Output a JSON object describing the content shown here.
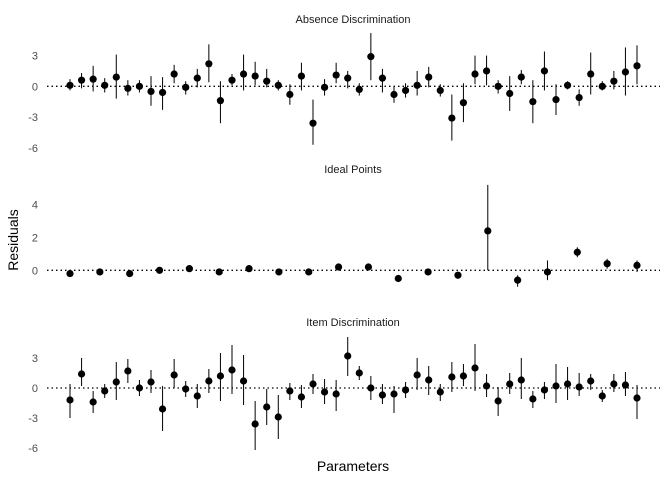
{
  "chart_data": {
    "type": "scatter",
    "subtype": "point-range faceted",
    "xlabel": "Parameters",
    "ylabel": "Residuals",
    "reference_line": {
      "y": 0,
      "style": "dotted"
    },
    "grid": false,
    "colors": {
      "point": "#000000",
      "errorbar": "#000000",
      "reference": "#000000"
    },
    "panels": [
      {
        "title": "Absence Discrimination",
        "ylim": [
          -7,
          5.5
        ],
        "yticks": [
          -6,
          -3,
          0,
          3
        ],
        "yticklabels": [
          "-6",
          "-3",
          "0",
          "3"
        ],
        "points": [
          {
            "x": 1,
            "y": 0.1,
            "lo": -0.4,
            "hi": 0.7
          },
          {
            "x": 2,
            "y": 0.6,
            "lo": -0.2,
            "hi": 1.3
          },
          {
            "x": 3,
            "y": 0.7,
            "lo": -0.5,
            "hi": 2.0
          },
          {
            "x": 4,
            "y": 0.1,
            "lo": -0.6,
            "hi": 0.8
          },
          {
            "x": 5,
            "y": 0.9,
            "lo": -1.2,
            "hi": 3.1
          },
          {
            "x": 6,
            "y": -0.2,
            "lo": -0.9,
            "hi": 0.6
          },
          {
            "x": 7,
            "y": 0.0,
            "lo": -0.6,
            "hi": 0.6
          },
          {
            "x": 8,
            "y": -0.5,
            "lo": -1.9,
            "hi": 1.0
          },
          {
            "x": 9,
            "y": -0.6,
            "lo": -2.3,
            "hi": 0.9
          },
          {
            "x": 10,
            "y": 1.2,
            "lo": 0.3,
            "hi": 2.1
          },
          {
            "x": 11,
            "y": -0.1,
            "lo": -0.8,
            "hi": 0.5
          },
          {
            "x": 12,
            "y": 0.8,
            "lo": -0.1,
            "hi": 1.7
          },
          {
            "x": 13,
            "y": 2.2,
            "lo": 0.4,
            "hi": 4.1
          },
          {
            "x": 14,
            "y": -1.4,
            "lo": -3.6,
            "hi": 0.5
          },
          {
            "x": 15,
            "y": 0.6,
            "lo": 0.1,
            "hi": 1.2
          },
          {
            "x": 16,
            "y": 1.2,
            "lo": -0.4,
            "hi": 3.1
          },
          {
            "x": 17,
            "y": 1.0,
            "lo": 0.1,
            "hi": 2.4
          },
          {
            "x": 18,
            "y": 0.5,
            "lo": -0.1,
            "hi": 1.7
          },
          {
            "x": 19,
            "y": 0.1,
            "lo": -0.4,
            "hi": 0.6
          },
          {
            "x": 20,
            "y": -0.8,
            "lo": -1.8,
            "hi": 0.2
          },
          {
            "x": 21,
            "y": 1.0,
            "lo": -0.4,
            "hi": 2.3
          },
          {
            "x": 22,
            "y": -3.6,
            "lo": -5.7,
            "hi": -1.3
          },
          {
            "x": 23,
            "y": -0.1,
            "lo": -0.9,
            "hi": 0.7
          },
          {
            "x": 24,
            "y": 1.1,
            "lo": 0.3,
            "hi": 2.3
          },
          {
            "x": 25,
            "y": 0.8,
            "lo": -0.2,
            "hi": 1.5
          },
          {
            "x": 26,
            "y": -0.3,
            "lo": -0.9,
            "hi": 0.3
          },
          {
            "x": 27,
            "y": 2.9,
            "lo": 0.6,
            "hi": 5.2
          },
          {
            "x": 28,
            "y": 0.8,
            "lo": -0.6,
            "hi": 1.7
          },
          {
            "x": 29,
            "y": -0.8,
            "lo": -1.6,
            "hi": 0.0
          },
          {
            "x": 30,
            "y": -0.4,
            "lo": -1.1,
            "hi": 0.3
          },
          {
            "x": 31,
            "y": 0.1,
            "lo": -0.9,
            "hi": 1.5
          },
          {
            "x": 32,
            "y": 0.9,
            "lo": -0.1,
            "hi": 1.9
          },
          {
            "x": 33,
            "y": -0.4,
            "lo": -1.0,
            "hi": 0.2
          },
          {
            "x": 34,
            "y": -3.1,
            "lo": -5.3,
            "hi": -0.8
          },
          {
            "x": 35,
            "y": -1.6,
            "lo": -3.5,
            "hi": 0.3
          },
          {
            "x": 36,
            "y": 1.2,
            "lo": 0.2,
            "hi": 3.0
          },
          {
            "x": 37,
            "y": 1.5,
            "lo": 0.1,
            "hi": 3.0
          },
          {
            "x": 38,
            "y": 0.0,
            "lo": -0.7,
            "hi": 0.6
          },
          {
            "x": 39,
            "y": -0.7,
            "lo": -2.4,
            "hi": 1.0
          },
          {
            "x": 40,
            "y": 0.9,
            "lo": 0.2,
            "hi": 1.6
          },
          {
            "x": 41,
            "y": -1.5,
            "lo": -3.6,
            "hi": 0.6
          },
          {
            "x": 42,
            "y": 1.5,
            "lo": -0.4,
            "hi": 3.4
          },
          {
            "x": 43,
            "y": -1.3,
            "lo": -2.8,
            "hi": 0.2
          },
          {
            "x": 44,
            "y": 0.1,
            "lo": -0.3,
            "hi": 0.5
          },
          {
            "x": 45,
            "y": -1.1,
            "lo": -1.9,
            "hi": -0.3
          },
          {
            "x": 46,
            "y": 1.2,
            "lo": -0.8,
            "hi": 3.3
          },
          {
            "x": 47,
            "y": 0.0,
            "lo": -0.4,
            "hi": 0.5
          },
          {
            "x": 48,
            "y": 0.5,
            "lo": -0.3,
            "hi": 1.5
          },
          {
            "x": 49,
            "y": 1.4,
            "lo": -0.9,
            "hi": 3.8
          },
          {
            "x": 50,
            "y": 2.0,
            "lo": 0.2,
            "hi": 4.0
          }
        ]
      },
      {
        "title": "Ideal Points",
        "ylim": [
          -1.2,
          5.5
        ],
        "yticks": [
          0,
          2,
          4
        ],
        "yticklabels": [
          "0",
          "2",
          "4"
        ],
        "points": [
          {
            "x": 1,
            "y": -0.2,
            "lo": -0.4,
            "hi": 0.0
          },
          {
            "x": 4,
            "y": -0.1,
            "lo": -0.3,
            "hi": 0.1
          },
          {
            "x": 7,
            "y": -0.2,
            "lo": -0.3,
            "hi": 0.0
          },
          {
            "x": 10,
            "y": 0.0,
            "lo": -0.1,
            "hi": 0.1
          },
          {
            "x": 13,
            "y": 0.1,
            "lo": 0.0,
            "hi": 0.2
          },
          {
            "x": 16,
            "y": -0.1,
            "lo": -0.2,
            "hi": 0.1
          },
          {
            "x": 19,
            "y": 0.1,
            "lo": 0.0,
            "hi": 0.2
          },
          {
            "x": 22,
            "y": -0.1,
            "lo": -0.2,
            "hi": 0.1
          },
          {
            "x": 25,
            "y": -0.1,
            "lo": -0.2,
            "hi": 0.0
          },
          {
            "x": 28,
            "y": 0.2,
            "lo": 0.1,
            "hi": 0.3
          },
          {
            "x": 31,
            "y": 0.2,
            "lo": 0.0,
            "hi": 0.4
          },
          {
            "x": 34,
            "y": -0.5,
            "lo": -0.7,
            "hi": -0.3
          },
          {
            "x": 37,
            "y": -0.1,
            "lo": -0.3,
            "hi": 0.1
          },
          {
            "x": 40,
            "y": -0.3,
            "lo": -0.4,
            "hi": -0.1
          },
          {
            "x": 43,
            "y": 2.4,
            "lo": 0.0,
            "hi": 5.2
          },
          {
            "x": 46,
            "y": -0.6,
            "lo": -1.0,
            "hi": -0.3
          },
          {
            "x": 49,
            "y": -0.1,
            "lo": -0.6,
            "hi": 0.6
          },
          {
            "x": 52,
            "y": 1.1,
            "lo": 0.8,
            "hi": 1.4
          },
          {
            "x": 55,
            "y": 0.4,
            "lo": 0.1,
            "hi": 0.7
          },
          {
            "x": 58,
            "y": 0.3,
            "lo": -0.1,
            "hi": 0.6
          }
        ]
      },
      {
        "title": "Item Discrimination",
        "ylim": [
          -7,
          5.5
        ],
        "yticks": [
          -6,
          -3,
          0,
          3
        ],
        "yticklabels": [
          "-6",
          "-3",
          "0",
          "3"
        ],
        "points": [
          {
            "x": 1,
            "y": -1.2,
            "lo": -3.0,
            "hi": 0.4
          },
          {
            "x": 2,
            "y": 1.4,
            "lo": 0.2,
            "hi": 3.0
          },
          {
            "x": 3,
            "y": -1.4,
            "lo": -2.5,
            "hi": -0.3
          },
          {
            "x": 4,
            "y": -0.3,
            "lo": -1.0,
            "hi": 0.4
          },
          {
            "x": 5,
            "y": 0.6,
            "lo": -1.2,
            "hi": 2.6
          },
          {
            "x": 6,
            "y": 1.7,
            "lo": 0.5,
            "hi": 2.9
          },
          {
            "x": 7,
            "y": 0.0,
            "lo": -0.8,
            "hi": 0.8
          },
          {
            "x": 8,
            "y": 0.6,
            "lo": -0.5,
            "hi": 1.8
          },
          {
            "x": 9,
            "y": -2.1,
            "lo": -4.3,
            "hi": 0.2
          },
          {
            "x": 10,
            "y": 1.3,
            "lo": 0.0,
            "hi": 2.9
          },
          {
            "x": 11,
            "y": -0.1,
            "lo": -0.9,
            "hi": 0.7
          },
          {
            "x": 12,
            "y": -0.8,
            "lo": -2.0,
            "hi": 0.4
          },
          {
            "x": 13,
            "y": 0.7,
            "lo": -0.5,
            "hi": 1.9
          },
          {
            "x": 14,
            "y": 1.2,
            "lo": -1.3,
            "hi": 3.5
          },
          {
            "x": 15,
            "y": 1.8,
            "lo": -0.6,
            "hi": 4.3
          },
          {
            "x": 16,
            "y": 0.7,
            "lo": -1.7,
            "hi": 3.3
          },
          {
            "x": 17,
            "y": -3.6,
            "lo": -6.2,
            "hi": -1.3
          },
          {
            "x": 18,
            "y": -1.9,
            "lo": -3.7,
            "hi": -0.1
          },
          {
            "x": 19,
            "y": -2.9,
            "lo": -5.1,
            "hi": -0.7
          },
          {
            "x": 20,
            "y": -0.3,
            "lo": -1.2,
            "hi": 0.5
          },
          {
            "x": 21,
            "y": -0.9,
            "lo": -2.0,
            "hi": 0.3
          },
          {
            "x": 22,
            "y": 0.4,
            "lo": -0.6,
            "hi": 1.4
          },
          {
            "x": 23,
            "y": -0.4,
            "lo": -1.6,
            "hi": 0.9
          },
          {
            "x": 24,
            "y": -0.6,
            "lo": -2.3,
            "hi": 0.8
          },
          {
            "x": 25,
            "y": 3.2,
            "lo": 1.2,
            "hi": 5.1
          },
          {
            "x": 26,
            "y": 1.5,
            "lo": 0.8,
            "hi": 2.2
          },
          {
            "x": 27,
            "y": 0.0,
            "lo": -1.2,
            "hi": 1.2
          },
          {
            "x": 28,
            "y": -0.7,
            "lo": -1.6,
            "hi": 0.4
          },
          {
            "x": 29,
            "y": -0.6,
            "lo": -2.5,
            "hi": 0.2
          },
          {
            "x": 30,
            "y": -0.2,
            "lo": -1.0,
            "hi": 0.6
          },
          {
            "x": 31,
            "y": 1.3,
            "lo": -0.2,
            "hi": 3.0
          },
          {
            "x": 32,
            "y": 0.8,
            "lo": -0.7,
            "hi": 2.2
          },
          {
            "x": 33,
            "y": -0.4,
            "lo": -1.3,
            "hi": 0.4
          },
          {
            "x": 34,
            "y": 1.1,
            "lo": -0.4,
            "hi": 2.6
          },
          {
            "x": 35,
            "y": 1.2,
            "lo": 0.2,
            "hi": 2.4
          },
          {
            "x": 36,
            "y": 2.0,
            "lo": -0.3,
            "hi": 4.4
          },
          {
            "x": 37,
            "y": 0.2,
            "lo": -0.9,
            "hi": 1.4
          },
          {
            "x": 38,
            "y": -1.3,
            "lo": -2.8,
            "hi": 0.1
          },
          {
            "x": 39,
            "y": 0.4,
            "lo": -0.6,
            "hi": 1.5
          },
          {
            "x": 40,
            "y": 0.8,
            "lo": -1.1,
            "hi": 3.0
          },
          {
            "x": 41,
            "y": -1.1,
            "lo": -2.0,
            "hi": -0.3
          },
          {
            "x": 42,
            "y": -0.2,
            "lo": -1.1,
            "hi": 0.6
          },
          {
            "x": 43,
            "y": 0.2,
            "lo": -1.5,
            "hi": 2.4
          },
          {
            "x": 44,
            "y": 0.4,
            "lo": -1.2,
            "hi": 2.1
          },
          {
            "x": 45,
            "y": 0.1,
            "lo": -0.8,
            "hi": 1.5
          },
          {
            "x": 46,
            "y": 0.7,
            "lo": -0.2,
            "hi": 1.4
          },
          {
            "x": 47,
            "y": -0.8,
            "lo": -1.4,
            "hi": -0.2
          },
          {
            "x": 48,
            "y": 0.4,
            "lo": -0.4,
            "hi": 1.4
          },
          {
            "x": 49,
            "y": 0.3,
            "lo": -0.8,
            "hi": 1.6
          },
          {
            "x": 50,
            "y": -1.0,
            "lo": -3.1,
            "hi": 0.3
          }
        ]
      }
    ]
  }
}
